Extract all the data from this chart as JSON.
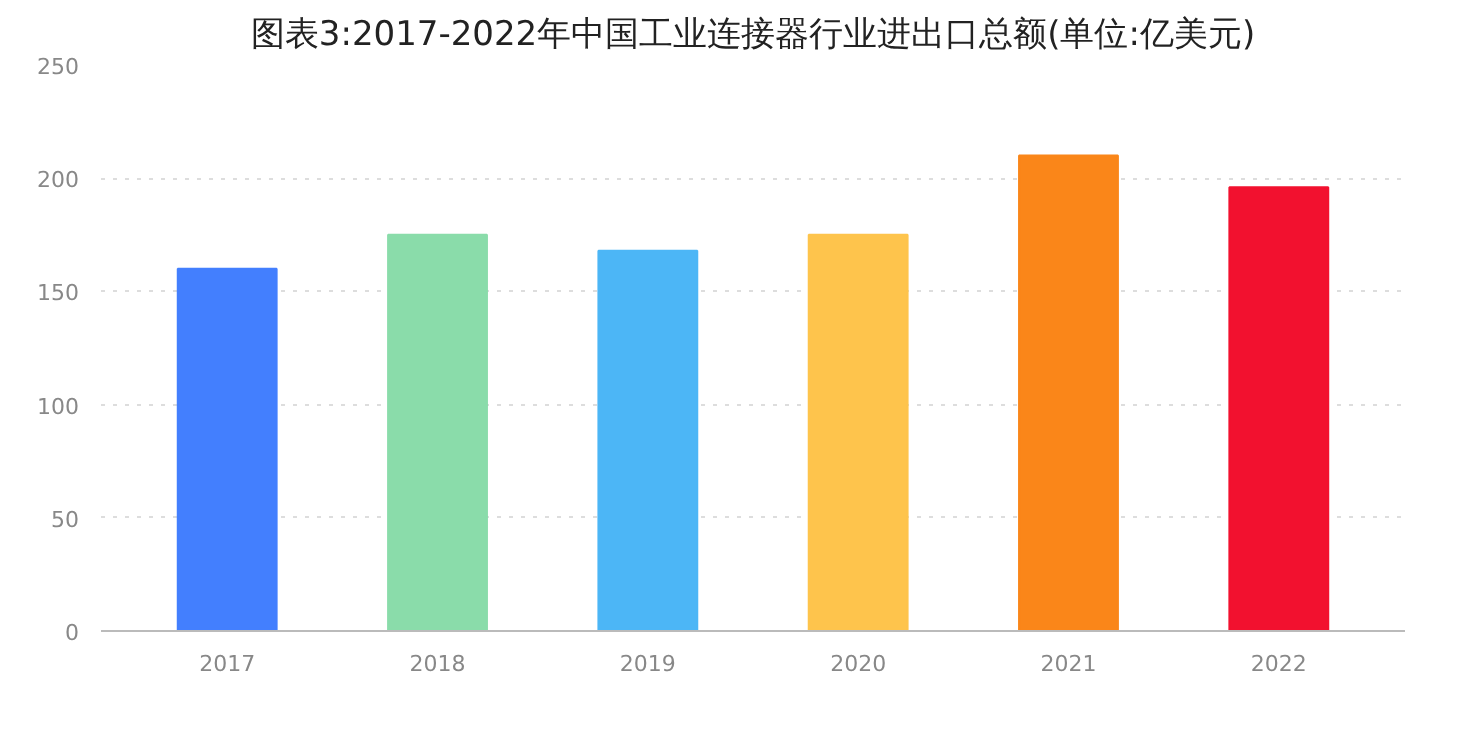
{
  "chart_data": {
    "type": "bar",
    "title": "图表3:2017-2022年中国工业连接器行业进出口总额(单位:亿美元)",
    "categories": [
      "2017",
      "2018",
      "2019",
      "2020",
      "2021",
      "2022"
    ],
    "values": [
      160,
      175,
      168,
      175,
      210,
      196
    ],
    "colors": [
      "#437ffe",
      "#8adcaa",
      "#4cb6f6",
      "#fec44c",
      "#fa8619",
      "#f2112f"
    ],
    "ylim": [
      0,
      250
    ],
    "yticks": [
      0,
      50,
      100,
      150,
      200,
      250
    ],
    "grid": "y"
  }
}
